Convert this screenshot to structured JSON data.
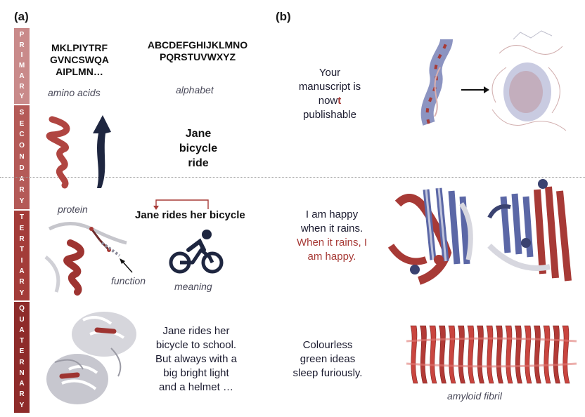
{
  "panels": {
    "a": "(a)",
    "b": "(b)"
  },
  "levels": [
    {
      "letters": [
        "P",
        "R",
        "I",
        "M",
        "A",
        "R",
        "Y"
      ],
      "color": "#c98a8a"
    },
    {
      "letters": [
        "S",
        "E",
        "C",
        "O",
        "N",
        "D",
        "A",
        "R",
        "Y"
      ],
      "color": "#b45a57"
    },
    {
      "letters": [
        "T",
        "E",
        "R",
        "T",
        "I",
        "A",
        "R",
        "Y"
      ],
      "color": "#a33c39"
    },
    {
      "letters": [
        "Q",
        "U",
        "A",
        "T",
        "E",
        "R",
        "N",
        "A",
        "R",
        "Y"
      ],
      "color": "#8e2b2a"
    }
  ],
  "primary": {
    "sequence": [
      "MKLPIYTRF",
      "GVNCSWQA",
      "AIPLMN…"
    ],
    "sequence_caption": "amino acids",
    "alphabet": [
      "ABCDEFGHIJKLMNO",
      "PQRSTUVWXYZ"
    ],
    "alphabet_caption": "alphabet",
    "sentence_pre": "Your manuscript is no",
    "sentence_t": "w",
    "sentence_red": "t",
    "sentence_post": "publishable",
    "line1": "Your",
    "line2": "manuscript is",
    "line4": "publishable"
  },
  "secondary": {
    "words": [
      "Jane",
      "bicycle",
      "ride"
    ]
  },
  "tertiary": {
    "protein_caption": "protein",
    "function_caption": "function",
    "sentence": "Jane rides her bicycle",
    "meaning_caption": "meaning",
    "happy_lines": [
      "I am happy",
      "when it rains."
    ],
    "happy_red_lines": [
      "When it rains, I",
      "am happy."
    ]
  },
  "quaternary": {
    "story": [
      "Jane rides her",
      "bicycle to school.",
      "But always with a",
      "big bright light",
      "and a helmet …"
    ],
    "chomsky": [
      "Colourless",
      "green ideas",
      "sleep furiously."
    ],
    "fibril_caption": "amyloid fibril"
  },
  "colors": {
    "accent_red": "#a73a36",
    "navy": "#1e2640",
    "blue": "#5b67a6"
  },
  "icons": [
    "helix-icon",
    "beta-strand-icon",
    "cyclist-icon",
    "arrow-right-icon"
  ]
}
